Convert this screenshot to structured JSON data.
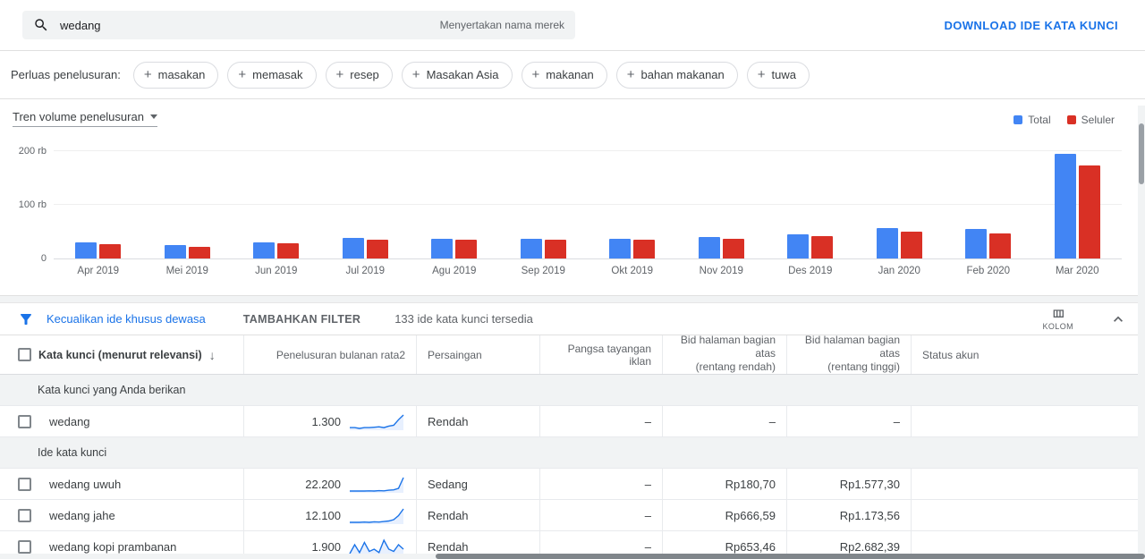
{
  "colors": {
    "accent": "#1a73e8",
    "bar_total": "#4285f4",
    "bar_mobile": "#d93025"
  },
  "topbar": {
    "search_value": "wedang",
    "search_hint": "Menyertakan nama merek",
    "download_label": "DOWNLOAD IDE KATA KUNCI"
  },
  "expand_search": {
    "label": "Perluas penelusuran:",
    "chips": [
      "masakan",
      "memasak",
      "resep",
      "Masakan Asia",
      "makanan",
      "bahan makanan",
      "tuwa"
    ]
  },
  "chart_data": {
    "type": "bar",
    "title": "Tren volume penelusuran",
    "categories": [
      "Apr 2019",
      "Mei 2019",
      "Jun 2019",
      "Jul 2019",
      "Agu 2019",
      "Sep 2019",
      "Okt 2019",
      "Nov 2019",
      "Des 2019",
      "Jan 2020",
      "Feb 2020",
      "Mar 2020"
    ],
    "series": [
      {
        "name": "Total",
        "color": "#4285f4",
        "values": [
          30,
          24,
          30,
          38,
          36,
          37,
          37,
          39,
          45,
          57,
          54,
          193
        ]
      },
      {
        "name": "Seluler",
        "color": "#d93025",
        "values": [
          27,
          21,
          28,
          35,
          34,
          35,
          35,
          36,
          41,
          50,
          47,
          172
        ]
      }
    ],
    "unit": "rb",
    "ylim": [
      0,
      215
    ],
    "yticks": [
      {
        "label": "0",
        "value": 0
      },
      {
        "label": "100 rb",
        "value": 100
      },
      {
        "label": "200 rb",
        "value": 200
      }
    ],
    "legend_position": "top-right",
    "grid": true
  },
  "filterbar": {
    "exclude_adult_label": "Kecualikan ide khusus dewasa",
    "add_filter_label": "TAMBAHKAN FILTER",
    "ideas_available": "133 ide kata kunci tersedia",
    "columns_label": "KOLOM"
  },
  "table": {
    "headers": {
      "keyword": "Kata kunci (menurut relevansi)",
      "monthly_searches": "Penelusuran bulanan rata2",
      "competition": "Persaingan",
      "ad_impression_share": "Pangsa tayangan iklan",
      "top_bid_low_line1": "Bid halaman bagian atas",
      "top_bid_low_line2": "(rentang rendah)",
      "top_bid_high_line1": "Bid halaman bagian atas",
      "top_bid_high_line2": "(rentang tinggi)",
      "account_status": "Status akun"
    },
    "sections": [
      {
        "label": "Kata kunci yang Anda berikan",
        "rows": [
          {
            "keyword": "wedang",
            "monthly_searches": "1.300",
            "trend": [
              3,
              3,
              2.8,
              3,
              3,
              3.1,
              3.2,
              3,
              3.4,
              3.6,
              5,
              6.2
            ],
            "competition": "Rendah",
            "ad_share": "–",
            "bid_low": "–",
            "bid_high": "–",
            "status": ""
          }
        ]
      },
      {
        "label": "Ide kata kunci",
        "rows": [
          {
            "keyword": "wedang uwuh",
            "monthly_searches": "22.200",
            "trend": [
              2,
              2,
              2,
              2,
              2.1,
              2,
              2.2,
              2.1,
              2.4,
              2.6,
              3.4,
              9
            ],
            "competition": "Sedang",
            "ad_share": "–",
            "bid_low": "Rp180,70",
            "bid_high": "Rp1.577,30",
            "status": ""
          },
          {
            "keyword": "wedang jahe",
            "monthly_searches": "12.100",
            "trend": [
              2,
              2,
              2,
              2.1,
              2,
              2.2,
              2.1,
              2.3,
              2.5,
              3,
              4.5,
              7
            ],
            "competition": "Rendah",
            "ad_share": "–",
            "bid_low": "Rp666,59",
            "bid_high": "Rp1.173,56",
            "status": ""
          },
          {
            "keyword": "wedang kopi prambanan",
            "monthly_searches": "1.900",
            "trend": [
              2,
              6,
              2.5,
              7,
              3,
              4,
              2.5,
              8,
              4,
              3,
              6,
              4
            ],
            "competition": "Rendah",
            "ad_share": "–",
            "bid_low": "Rp653,46",
            "bid_high": "Rp2.682,39",
            "status": ""
          }
        ]
      }
    ]
  }
}
